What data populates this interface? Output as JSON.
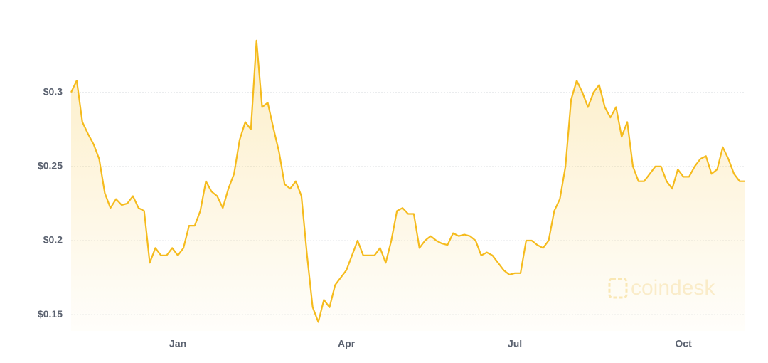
{
  "chart_data": {
    "type": "line",
    "watermark": "coindesk",
    "categories": [
      null,
      null,
      null,
      null,
      null,
      null,
      null,
      null,
      null,
      null,
      null,
      null,
      null,
      null,
      null,
      null,
      null,
      null,
      null,
      "Jan",
      null,
      null,
      null,
      null,
      null,
      null,
      null,
      null,
      null,
      null,
      null,
      null,
      null,
      null,
      null,
      null,
      null,
      null,
      null,
      null,
      null,
      null,
      null,
      null,
      null,
      null,
      null,
      null,
      null,
      "Apr",
      null,
      null,
      null,
      null,
      null,
      null,
      null,
      null,
      null,
      null,
      null,
      null,
      null,
      null,
      null,
      null,
      null,
      null,
      null,
      null,
      null,
      null,
      null,
      null,
      null,
      null,
      null,
      null,
      null,
      "Jul",
      null,
      null,
      null,
      null,
      null,
      null,
      null,
      null,
      null,
      null,
      null,
      null,
      null,
      null,
      null,
      null,
      null,
      null,
      null,
      null,
      null,
      null,
      null,
      null,
      null,
      null,
      null,
      null,
      null,
      "Oct",
      null,
      null,
      null,
      null,
      null,
      null,
      null,
      null,
      null,
      null,
      null
    ],
    "series": [
      {
        "color": "#f5bb1d",
        "values": [
          0.3,
          0.308,
          0.28,
          0.272,
          0.265,
          0.255,
          0.232,
          0.222,
          0.228,
          0.224,
          0.225,
          0.23,
          0.222,
          0.22,
          0.185,
          0.195,
          0.19,
          0.19,
          0.195,
          0.19,
          0.195,
          0.21,
          0.21,
          0.22,
          0.24,
          0.233,
          0.23,
          0.222,
          0.235,
          0.245,
          0.268,
          0.28,
          0.275,
          0.335,
          0.29,
          0.293,
          0.276,
          0.26,
          0.238,
          0.235,
          0.24,
          0.23,
          0.19,
          0.155,
          0.145,
          0.16,
          0.155,
          0.17,
          0.175,
          0.18,
          0.19,
          0.2,
          0.19,
          0.19,
          0.19,
          0.195,
          0.185,
          0.2,
          0.22,
          0.222,
          0.218,
          0.218,
          0.195,
          0.2,
          0.203,
          0.2,
          0.198,
          0.197,
          0.205,
          0.203,
          0.204,
          0.203,
          0.2,
          0.19,
          0.192,
          0.19,
          0.185,
          0.18,
          0.177,
          0.178,
          0.178,
          0.2,
          0.2,
          0.197,
          0.195,
          0.2,
          0.22,
          0.228,
          0.25,
          0.295,
          0.308,
          0.3,
          0.29,
          0.3,
          0.305,
          0.29,
          0.283,
          0.29,
          0.27,
          0.28,
          0.25,
          0.24,
          0.24,
          0.245,
          0.25,
          0.25,
          0.24,
          0.235,
          0.248,
          0.243,
          0.243,
          0.25,
          0.255,
          0.257,
          0.245,
          0.248,
          0.263,
          0.255,
          0.245,
          0.24,
          0.24
        ]
      }
    ],
    "ylim": [
      0.139,
      0.345
    ],
    "yticks": [
      {
        "value": 0.15,
        "label": "$0.15"
      },
      {
        "value": 0.2,
        "label": "$0.2"
      },
      {
        "value": 0.25,
        "label": "$0.25"
      },
      {
        "value": 0.3,
        "label": "$0.3"
      }
    ],
    "grid": true
  }
}
